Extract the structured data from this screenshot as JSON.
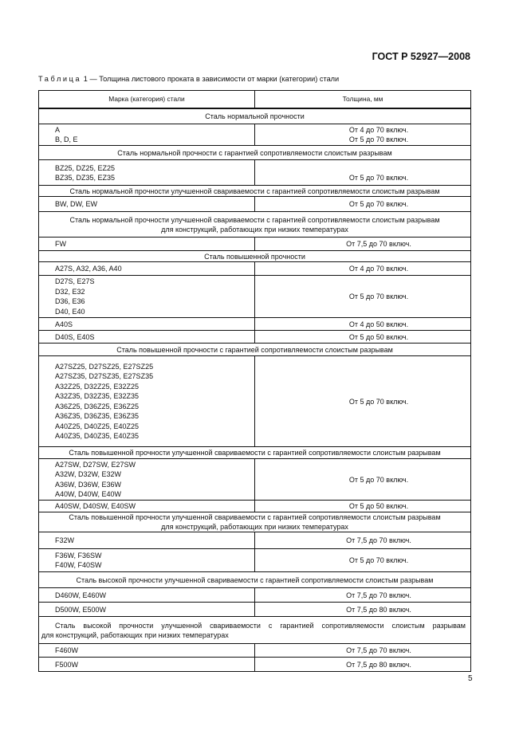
{
  "document_code": "ГОСТ Р 52927—2008",
  "caption": {
    "label": "Таблица",
    "number": "1",
    "text": "— Толщина листового проката в зависимости от марки (категории) стали"
  },
  "table": {
    "headers": [
      "Марка (категория) стали",
      "Толщина, мм"
    ],
    "rows": [
      {
        "type": "section",
        "text": "Сталь нормальной прочности"
      },
      {
        "type": "data",
        "grades": [
          "A",
          "B, D, E"
        ],
        "thickness": [
          "От 4 до 70 включ.",
          "От 5 до 70 включ."
        ]
      },
      {
        "type": "section",
        "text": "Сталь нормальной прочности с гарантией сопротивляемости слоистым разрывам"
      },
      {
        "type": "data",
        "grades": [
          "BZ25, DZ25, EZ25",
          "BZ35, DZ35, EZ35"
        ],
        "thickness": [
          "От 5 до 70 включ."
        ]
      },
      {
        "type": "section",
        "text": "Сталь нормальной прочности улучшенной свариваемости с гарантией сопротивляемости слоистым разрывам"
      },
      {
        "type": "data",
        "grades": [
          "BW, DW, EW"
        ],
        "thickness": [
          "От 5 до 70 включ."
        ]
      },
      {
        "type": "section",
        "text": "Сталь нормальной прочности улучшенной свариваемости с гарантией сопротивляемости слоистым разрывам",
        "text2": "для конструкций, работающих при низких температурах"
      },
      {
        "type": "data",
        "grades": [
          "FW"
        ],
        "thickness": [
          "От 7,5 до 70 включ."
        ]
      },
      {
        "type": "section",
        "text": "Сталь повышенной прочности"
      },
      {
        "type": "data",
        "grades": [
          "A27S, A32, A36, A40"
        ],
        "thickness": [
          "От 4 до 70 включ."
        ]
      },
      {
        "type": "data",
        "grades": [
          "D27S, E27S",
          "D32, E32",
          "D36, E36",
          "D40, E40"
        ],
        "thickness": [
          "От 5 до 70 включ."
        ]
      },
      {
        "type": "data",
        "grades": [
          "A40S"
        ],
        "thickness": [
          "От 4 до 50 включ."
        ]
      },
      {
        "type": "data",
        "grades": [
          "D40S, E40S"
        ],
        "thickness": [
          "От 5 до 50 включ."
        ]
      },
      {
        "type": "section",
        "text": "Сталь повышенной прочности с гарантией сопротивляемости слоистым разрывам"
      },
      {
        "type": "data",
        "grades": [
          "A27SZ25, D27SZ25, E27SZ25",
          "A27SZ35, D27SZ35, E27SZ35",
          "A32Z25, D32Z25, E32Z25",
          "A32Z35, D32Z35, E32Z35",
          "A36Z25, D36Z25, E36Z25",
          "A36Z35, D36Z35, E36Z35",
          "A40Z25, D40Z25, E40Z25",
          "A40Z35, D40Z35, E40Z35"
        ],
        "thickness": [
          "От 5 до 70 включ."
        ]
      },
      {
        "type": "section",
        "text": "Сталь повышенной прочности улучшенной свариваемости с гарантией сопротивляемости слоистым разрывам"
      },
      {
        "type": "data",
        "grades": [
          "A27SW, D27SW, E27SW",
          "A32W, D32W, E32W",
          "A36W, D36W, E36W",
          "A40W, D40W, E40W"
        ],
        "thickness": [
          "От 5 до 70 включ."
        ]
      },
      {
        "type": "data",
        "grades": [
          "A40SW, D40SW, E40SW"
        ],
        "thickness": [
          "От 5 до 50 включ."
        ]
      },
      {
        "type": "section",
        "text": "Сталь повышенной прочности улучшенной свариваемости с гарантией сопротивляемости слоистым разрывам",
        "text2": "для конструкций, работающих при низких температурах"
      },
      {
        "type": "data",
        "grades": [
          "F32W"
        ],
        "thickness": [
          "От 7,5 до 70 включ."
        ]
      },
      {
        "type": "data",
        "grades": [
          "F36W, F36SW",
          "F40W, F40SW"
        ],
        "thickness": [
          "От 5 до 70 включ."
        ]
      },
      {
        "type": "section",
        "text": "Сталь высокой прочности улучшенной свариваемости с гарантией сопротивляемости слоистым разрывам"
      },
      {
        "type": "data",
        "grades": [
          "D460W, E460W"
        ],
        "thickness": [
          "От 7,5 до 70 включ."
        ]
      },
      {
        "type": "data",
        "grades": [
          "D500W, E500W"
        ],
        "thickness": [
          "От 7,5 до 80 включ."
        ]
      },
      {
        "type": "section",
        "text": "Сталь высокой прочности улучшенной свариваемости с гарантией сопротивляемости слоистым разрывам",
        "text2": "для конструкций, работающих при низких температурах"
      },
      {
        "type": "data",
        "grades": [
          "F460W"
        ],
        "thickness": [
          "От 7,5 до 70 включ."
        ]
      },
      {
        "type": "data",
        "grades": [
          "F500W"
        ],
        "thickness": [
          "От 7,5 до 80 включ."
        ]
      }
    ]
  },
  "page_number": "5"
}
